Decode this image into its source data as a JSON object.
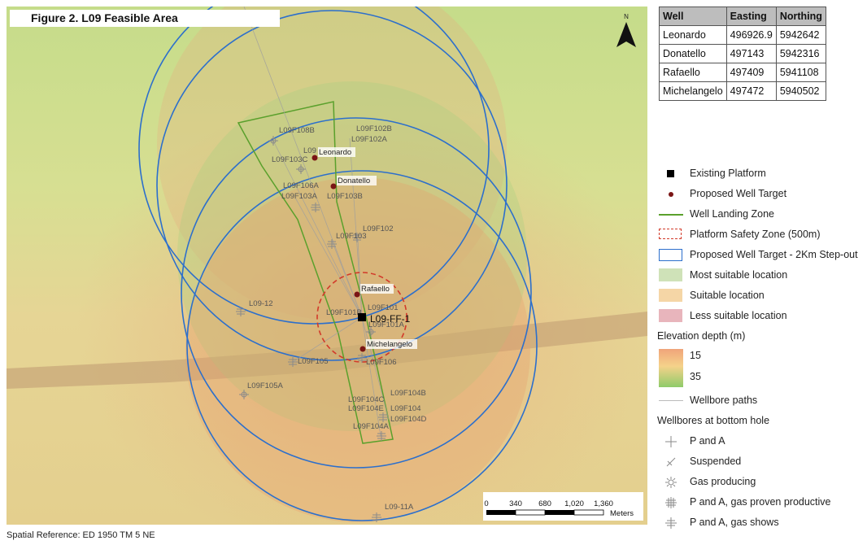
{
  "figure_title": "Figure 2. L09 Feasible Area",
  "spatial_reference": "Spatial Reference: ED 1950 TM 5 NE",
  "north_label": "N",
  "well_table": {
    "headers": [
      "Well",
      "Easting",
      "Northing"
    ],
    "rows": [
      [
        "Leonardo",
        "496926.9",
        "5942642"
      ],
      [
        "Donatello",
        "497143",
        "5942316"
      ],
      [
        "Rafaello",
        "497409",
        "5941108"
      ],
      [
        "Michelangelo",
        "497472",
        "5940502"
      ]
    ]
  },
  "legend": {
    "existing_platform": "Existing Platform",
    "proposed_well_target": "Proposed Well Target",
    "well_landing_zone": "Well Landing Zone",
    "platform_safety_zone": "Platform Safety Zone (500m)",
    "step_out": "Proposed Well Target - 2Km Step-out",
    "most_suitable": "Most suitable location",
    "suitable": "Suitable location",
    "less_suitable": "Less suitable location",
    "elevation_heading": "Elevation depth (m)",
    "elev_high": "15",
    "elev_low": "35",
    "wellbore_paths": "Wellbore paths",
    "bottom_hole_heading": "Wellbores at bottom hole",
    "p_and_a": "P and A",
    "suspended": "Suspended",
    "gas_producing": "Gas producing",
    "gas_proven": "P and A, gas proven productive",
    "gas_shows": "P and A, gas shows"
  },
  "scale_bar": {
    "ticks": [
      "0",
      "340",
      "680",
      "1,020",
      "1,360"
    ],
    "unit": "Meters"
  },
  "map_labels": {
    "platform": "L09-FF-1",
    "leonardo": "Leonardo",
    "donatello": "Donatello",
    "rafaello": "Rafaello",
    "michelangelo": "Michelangelo",
    "wells": [
      "L09F108B",
      "L09F102B",
      "L09F102A",
      "L09",
      "L09F103C",
      "L09F106A",
      "L09F103A",
      "L09F103B",
      "L09F102",
      "L09F103",
      "L09-12",
      "L09F101B",
      "L09F101",
      "L09F101A",
      "L09F105",
      "L09F106",
      "L09F105A",
      "L09F104B",
      "L09F104C",
      "L09F104E",
      "L09F104",
      "L09F104D",
      "L09F104A",
      "L09-11A"
    ]
  },
  "colors": {
    "step_out_circle": "#2c6fcc",
    "safety_zone": "#d23a2a",
    "landing_zone": "#5aa02c",
    "well_target": "#7a1515",
    "most_suitable": "#cfe2b8",
    "suitable": "#f5d6a6",
    "less_suitable": "#e8b5bc"
  }
}
